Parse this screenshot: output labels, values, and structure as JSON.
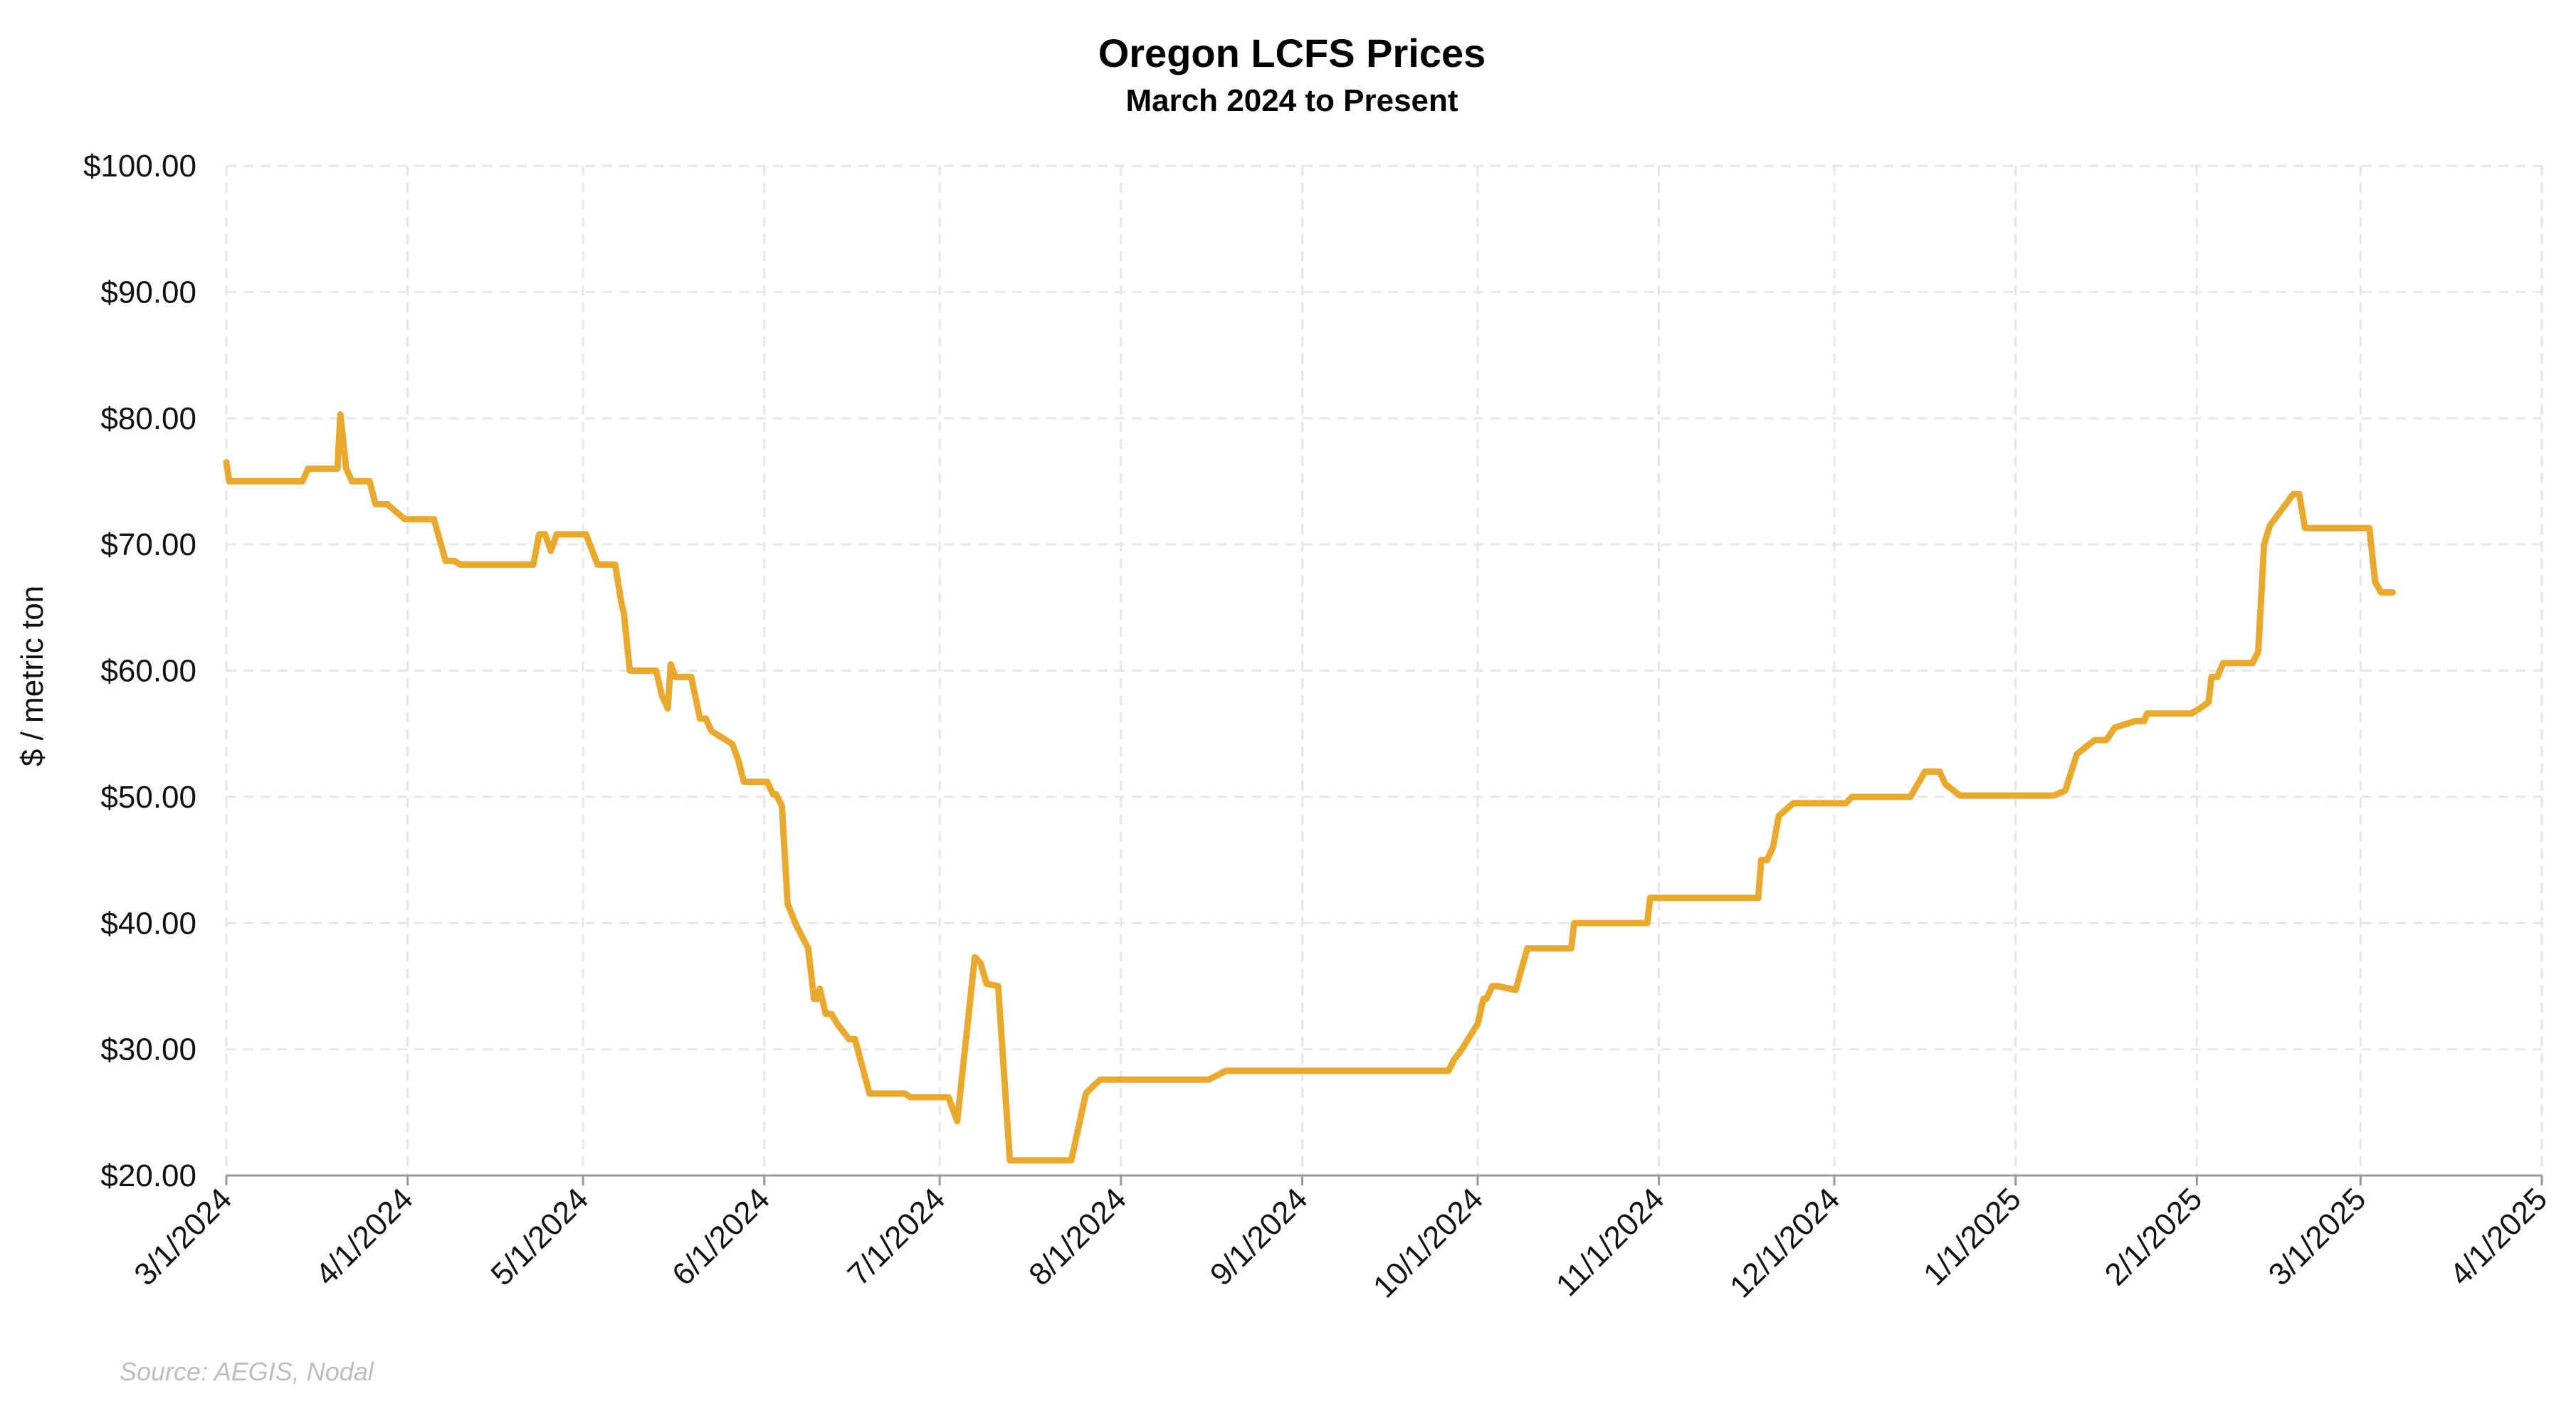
{
  "chart_data": {
    "type": "line",
    "title": "Oregon LCFS Prices",
    "subtitle": "March 2024 to Present",
    "xlabel": "",
    "ylabel": "$ / metric ton",
    "ylim": [
      20,
      100
    ],
    "yticks": [
      {
        "value": 20,
        "label": "$20.00"
      },
      {
        "value": 30,
        "label": "$30.00"
      },
      {
        "value": 40,
        "label": "$40.00"
      },
      {
        "value": 50,
        "label": "$50.00"
      },
      {
        "value": 60,
        "label": "$60.00"
      },
      {
        "value": 70,
        "label": "$70.00"
      },
      {
        "value": 80,
        "label": "$80.00"
      },
      {
        "value": 90,
        "label": "$90.00"
      },
      {
        "value": 100,
        "label": "$100.00"
      }
    ],
    "xrange_days": [
      0,
      396
    ],
    "xticks": [
      {
        "day": 0,
        "label": "3/1/2024"
      },
      {
        "day": 31,
        "label": "4/1/2024"
      },
      {
        "day": 61,
        "label": "5/1/2024"
      },
      {
        "day": 92,
        "label": "6/1/2024"
      },
      {
        "day": 122,
        "label": "7/1/2024"
      },
      {
        "day": 153,
        "label": "8/1/2024"
      },
      {
        "day": 184,
        "label": "9/1/2024"
      },
      {
        "day": 214,
        "label": "10/1/2024"
      },
      {
        "day": 245,
        "label": "11/1/2024"
      },
      {
        "day": 275,
        "label": "12/1/2024"
      },
      {
        "day": 306,
        "label": "1/1/2025"
      },
      {
        "day": 337,
        "label": "2/1/2025"
      },
      {
        "day": 365,
        "label": "3/1/2025"
      },
      {
        "day": 396,
        "label": "4/1/2025"
      }
    ],
    "grid": true,
    "series": [
      {
        "name": "Oregon LCFS Price",
        "color": "#E9A92F",
        "points": [
          [
            0,
            76.5
          ],
          [
            0.5,
            75
          ],
          [
            13,
            75
          ],
          [
            14,
            76
          ],
          [
            19,
            76
          ],
          [
            19.5,
            80.3
          ],
          [
            20.5,
            76
          ],
          [
            21.5,
            75
          ],
          [
            24.5,
            75
          ],
          [
            25.5,
            73.2
          ],
          [
            27.5,
            73.2
          ],
          [
            30.5,
            72
          ],
          [
            35.5,
            72
          ],
          [
            37.5,
            68.7
          ],
          [
            39,
            68.7
          ],
          [
            40,
            68.4
          ],
          [
            52.5,
            68.4
          ],
          [
            53.5,
            70.8
          ],
          [
            54.5,
            70.8
          ],
          [
            55.5,
            69.5
          ],
          [
            56.5,
            70.8
          ],
          [
            61.5,
            70.8
          ],
          [
            63.5,
            68.4
          ],
          [
            66.5,
            68.4
          ],
          [
            67.5,
            65.5
          ],
          [
            68,
            64.5
          ],
          [
            69,
            60
          ],
          [
            73.5,
            60
          ],
          [
            74.5,
            58
          ],
          [
            75.5,
            57
          ],
          [
            76,
            60.5
          ],
          [
            76.8,
            59.5
          ],
          [
            79.5,
            59.5
          ],
          [
            81,
            56.2
          ],
          [
            82,
            56.2
          ],
          [
            83,
            55.2
          ],
          [
            86.5,
            54.2
          ],
          [
            87.5,
            53
          ],
          [
            88.5,
            51.2
          ],
          [
            92.5,
            51.2
          ],
          [
            93.5,
            50.2
          ],
          [
            94,
            50.2
          ],
          [
            95,
            49.3
          ],
          [
            96,
            41.5
          ],
          [
            97.5,
            39.8
          ],
          [
            99.5,
            38
          ],
          [
            100.5,
            34
          ],
          [
            101,
            34
          ],
          [
            101.5,
            34.8
          ],
          [
            102.5,
            32.8
          ],
          [
            103.5,
            32.8
          ],
          [
            104.5,
            32
          ],
          [
            106.5,
            30.8
          ],
          [
            107.5,
            30.8
          ],
          [
            110,
            26.5
          ],
          [
            116,
            26.5
          ],
          [
            117,
            26.2
          ],
          [
            123.5,
            26.2
          ],
          [
            125,
            24.3
          ],
          [
            128,
            37.3
          ],
          [
            129,
            36.8
          ],
          [
            130,
            35.2
          ],
          [
            132,
            35
          ],
          [
            134,
            21.2
          ],
          [
            144.5,
            21.2
          ],
          [
            147,
            26.5
          ],
          [
            148.5,
            27.2
          ],
          [
            149.5,
            27.6
          ],
          [
            168,
            27.6
          ],
          [
            171,
            28.3
          ],
          [
            209,
            28.3
          ],
          [
            210,
            29.2
          ],
          [
            211,
            29.8
          ],
          [
            214,
            32
          ],
          [
            215,
            34
          ],
          [
            215.5,
            34
          ],
          [
            216.5,
            35
          ],
          [
            217.5,
            35
          ],
          [
            220.5,
            34.7
          ],
          [
            222.5,
            38
          ],
          [
            230,
            38
          ],
          [
            230.5,
            40
          ],
          [
            243,
            40
          ],
          [
            243.5,
            42
          ],
          [
            262,
            42
          ],
          [
            262.5,
            45
          ],
          [
            263.5,
            45
          ],
          [
            264.5,
            46
          ],
          [
            265.5,
            48.5
          ],
          [
            268,
            49.5
          ],
          [
            277,
            49.5
          ],
          [
            278,
            50
          ],
          [
            288,
            50
          ],
          [
            290.5,
            52
          ],
          [
            293,
            52
          ],
          [
            294,
            51
          ],
          [
            296.5,
            50.1
          ],
          [
            312.5,
            50.1
          ],
          [
            314.5,
            50.5
          ],
          [
            316.5,
            53.4
          ],
          [
            319.5,
            54.5
          ],
          [
            321.5,
            54.5
          ],
          [
            323,
            55.5
          ],
          [
            326.5,
            56
          ],
          [
            328,
            56
          ],
          [
            328.5,
            56.6
          ],
          [
            336,
            56.6
          ],
          [
            337.5,
            57
          ],
          [
            339,
            57.5
          ],
          [
            339.5,
            59.5
          ],
          [
            340.5,
            59.5
          ],
          [
            341.5,
            60.6
          ],
          [
            346.5,
            60.6
          ],
          [
            347.5,
            61.5
          ],
          [
            348.5,
            70
          ],
          [
            349.5,
            71.5
          ],
          [
            353.5,
            74
          ],
          [
            354.5,
            74
          ],
          [
            355.5,
            71.3
          ],
          [
            366.5,
            71.3
          ],
          [
            367.5,
            67
          ],
          [
            368.5,
            66.2
          ],
          [
            370.5,
            66.2
          ]
        ]
      }
    ],
    "source": "Source: AEGIS, Nodal"
  }
}
